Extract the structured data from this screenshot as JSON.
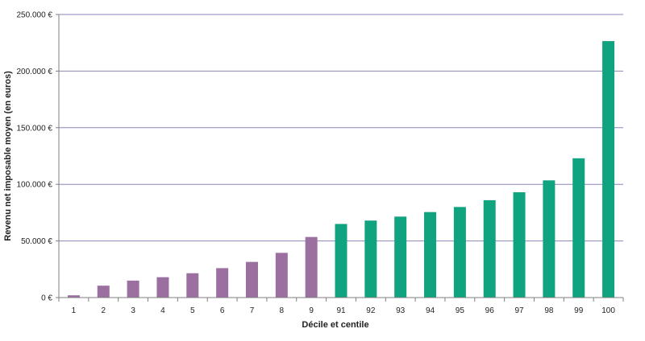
{
  "chart_data": {
    "type": "bar",
    "title": "",
    "xlabel": "Décile et centile",
    "ylabel": "Revenu net imposable moyen (en euros)",
    "ylim": [
      0,
      250000
    ],
    "yticks": [
      0,
      50000,
      100000,
      150000,
      200000,
      250000
    ],
    "ytick_labels": [
      "0 €",
      "50.000 €",
      "100.000 €",
      "150.000 €",
      "200.000 €",
      "250.000 €"
    ],
    "grid": "horizontal",
    "legend": "none",
    "categories": [
      "1",
      "2",
      "3",
      "4",
      "5",
      "6",
      "7",
      "8",
      "9",
      "91",
      "92",
      "93",
      "94",
      "95",
      "96",
      "97",
      "98",
      "99",
      "100"
    ],
    "values": [
      2000,
      10500,
      15000,
      18000,
      21500,
      26000,
      31500,
      39500,
      53500,
      65000,
      68000,
      71500,
      75500,
      80000,
      86000,
      93000,
      103500,
      123000,
      226500
    ],
    "bar_colors": [
      "#9b6fa0",
      "#9b6fa0",
      "#9b6fa0",
      "#9b6fa0",
      "#9b6fa0",
      "#9b6fa0",
      "#9b6fa0",
      "#9b6fa0",
      "#9b6fa0",
      "#10a37f",
      "#10a37f",
      "#10a37f",
      "#10a37f",
      "#10a37f",
      "#10a37f",
      "#10a37f",
      "#10a37f",
      "#10a37f",
      "#10a37f"
    ],
    "colors": {
      "grid": "#8a86b8",
      "axis": "#7f7f7f",
      "deciles": "#9b6fa0",
      "centiles": "#10a37f"
    }
  }
}
